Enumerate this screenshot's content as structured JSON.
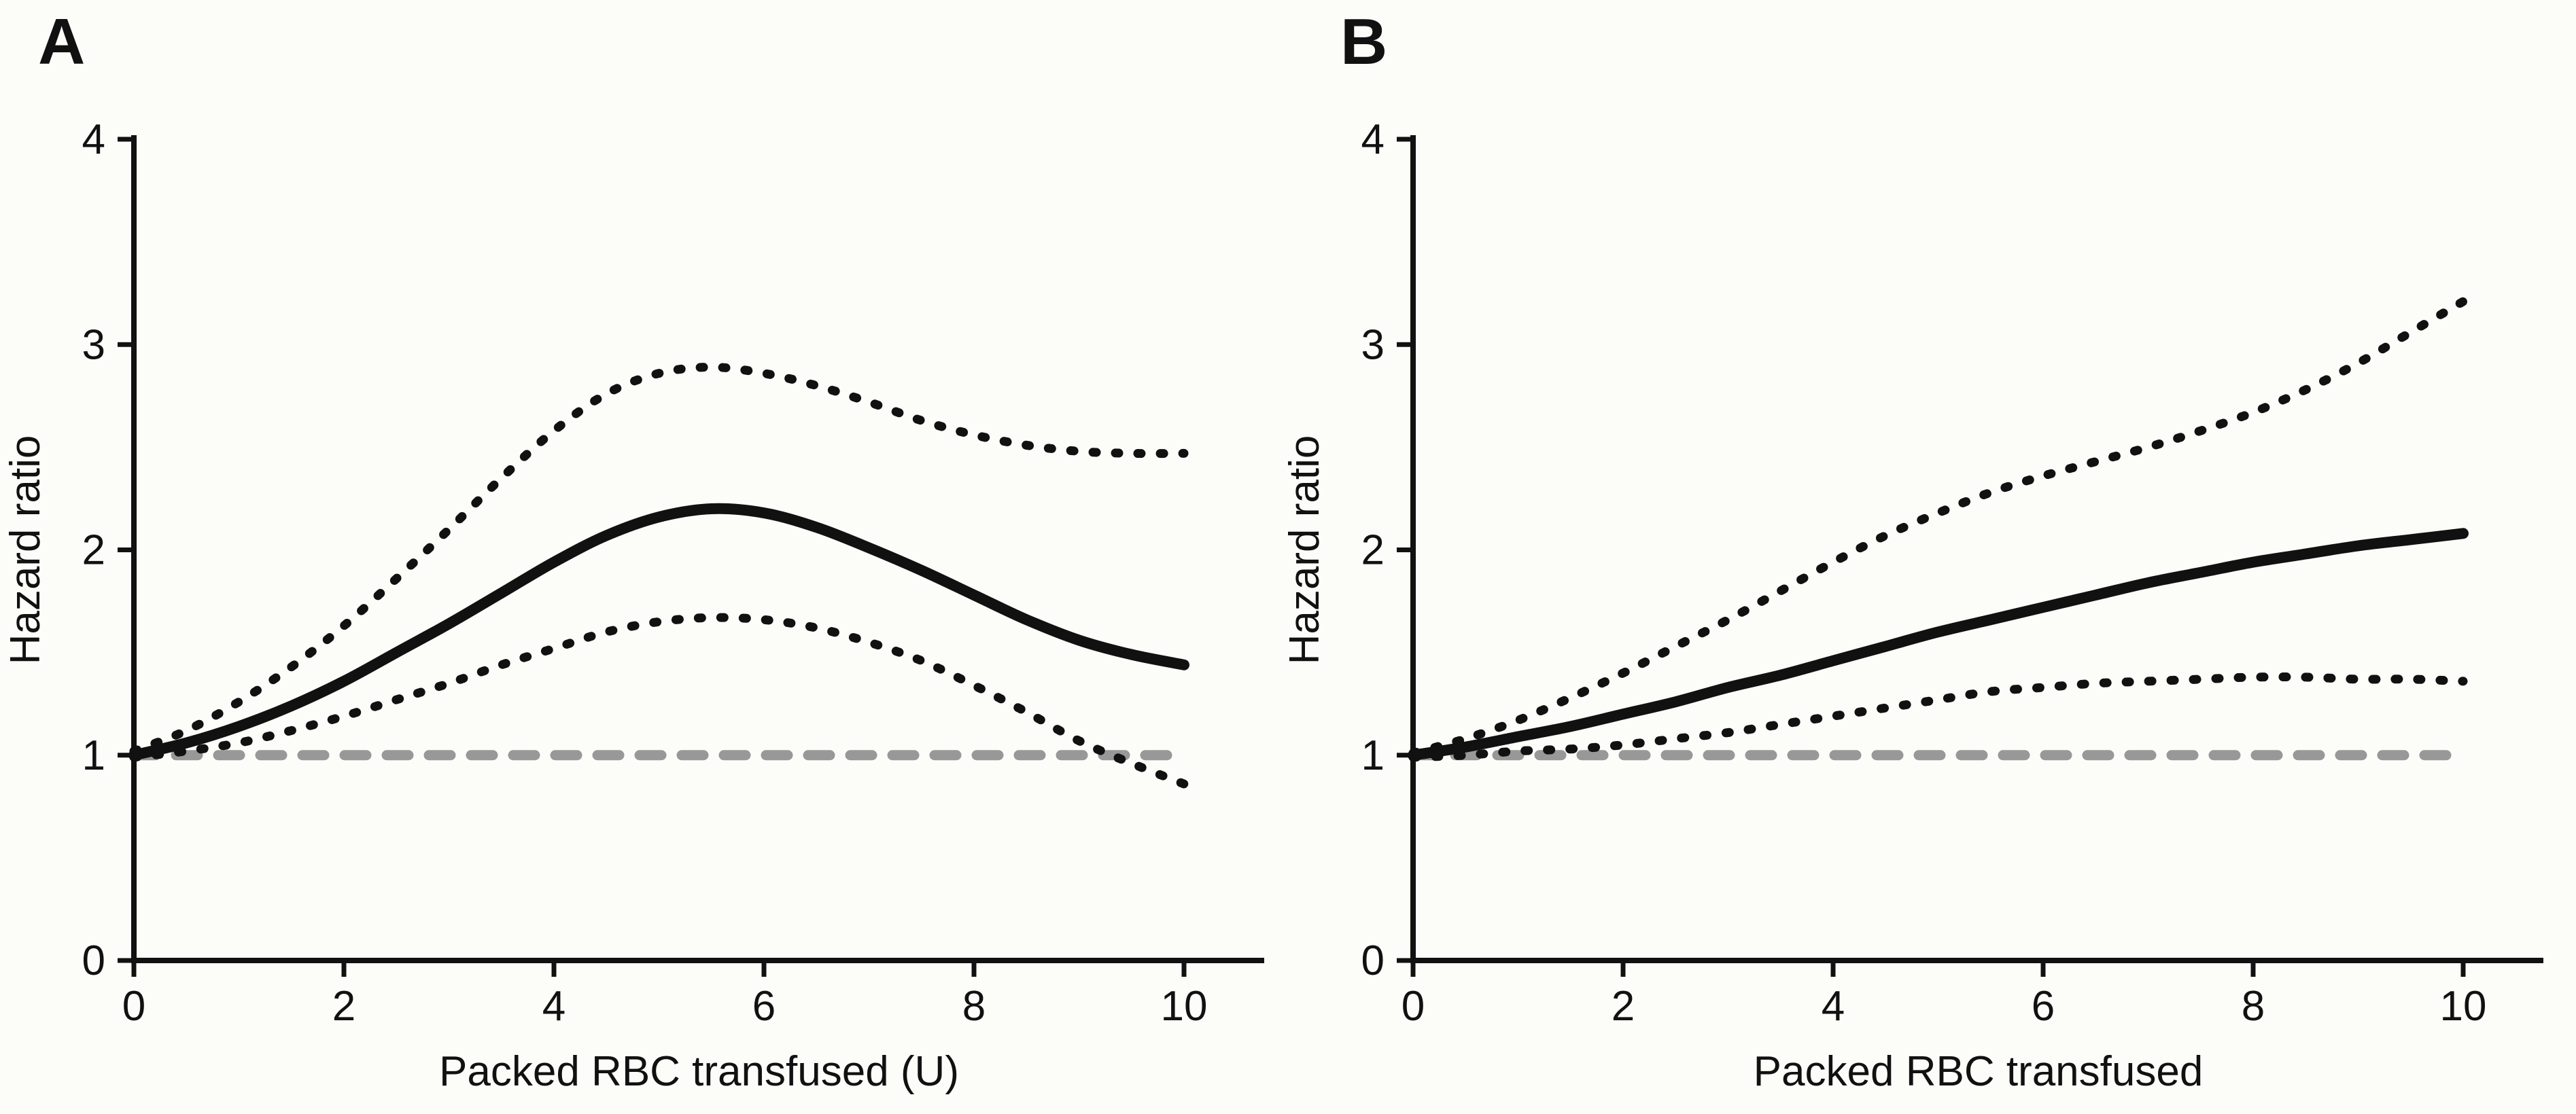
{
  "figure": {
    "background": "#fcfcf9",
    "curve_color": "#111111",
    "reference_color": "#989898"
  },
  "chart_data": [
    {
      "panel": "A",
      "type": "line",
      "xlabel": "Packed RBC transfused (U)",
      "ylabel": "Hazard ratio",
      "xlim": [
        0,
        10.8
      ],
      "ylim": [
        0,
        4
      ],
      "xticks": [
        0,
        2,
        4,
        6,
        8,
        10
      ],
      "yticks": [
        0,
        1,
        2,
        3,
        4
      ],
      "grid": false,
      "legend": "none",
      "reference_line": {
        "y": 1,
        "style": "dashed",
        "color": "#989898"
      },
      "x": [
        0,
        0.5,
        1,
        1.5,
        2,
        2.5,
        3,
        3.5,
        4,
        4.5,
        5,
        5.5,
        6,
        6.5,
        7,
        7.5,
        8,
        8.5,
        9,
        9.5,
        10
      ],
      "series": [
        {
          "name": "hazard ratio estimate",
          "style": "solid",
          "values": [
            1.0,
            1.06,
            1.14,
            1.24,
            1.36,
            1.5,
            1.64,
            1.79,
            1.94,
            2.07,
            2.16,
            2.2,
            2.18,
            2.11,
            2.01,
            1.9,
            1.78,
            1.66,
            1.56,
            1.49,
            1.44
          ]
        },
        {
          "name": "upper 95% CI",
          "style": "dotted",
          "values": [
            1.02,
            1.12,
            1.26,
            1.43,
            1.63,
            1.86,
            2.1,
            2.35,
            2.58,
            2.76,
            2.86,
            2.89,
            2.86,
            2.8,
            2.72,
            2.63,
            2.56,
            2.51,
            2.48,
            2.47,
            2.47
          ]
        },
        {
          "name": "lower 95% CI",
          "style": "dotted",
          "values": [
            0.99,
            1.02,
            1.06,
            1.12,
            1.19,
            1.27,
            1.35,
            1.44,
            1.52,
            1.6,
            1.65,
            1.67,
            1.66,
            1.62,
            1.55,
            1.46,
            1.34,
            1.21,
            1.07,
            0.96,
            0.86
          ]
        }
      ]
    },
    {
      "panel": "B",
      "type": "line",
      "xlabel": "Packed RBC transfused",
      "ylabel": "Hazard ratio",
      "xlim": [
        0,
        10.8
      ],
      "ylim": [
        0,
        4
      ],
      "xticks": [
        0,
        2,
        4,
        6,
        8,
        10
      ],
      "yticks": [
        0,
        1,
        2,
        3,
        4
      ],
      "grid": false,
      "legend": "none",
      "reference_line": {
        "y": 1,
        "style": "dashed",
        "color": "#989898"
      },
      "x": [
        0,
        0.5,
        1,
        1.5,
        2,
        2.5,
        3,
        3.5,
        4,
        4.5,
        5,
        5.5,
        6,
        6.5,
        7,
        7.5,
        8,
        8.5,
        9,
        9.5,
        10
      ],
      "series": [
        {
          "name": "hazard ratio estimate",
          "style": "solid",
          "values": [
            1.0,
            1.04,
            1.09,
            1.14,
            1.2,
            1.26,
            1.33,
            1.39,
            1.46,
            1.53,
            1.6,
            1.66,
            1.72,
            1.78,
            1.84,
            1.89,
            1.94,
            1.98,
            2.02,
            2.05,
            2.08
          ]
        },
        {
          "name": "upper 95% CI",
          "style": "dotted",
          "values": [
            1.01,
            1.08,
            1.17,
            1.28,
            1.4,
            1.53,
            1.66,
            1.8,
            1.94,
            2.07,
            2.18,
            2.28,
            2.36,
            2.43,
            2.5,
            2.58,
            2.67,
            2.78,
            2.91,
            3.06,
            3.21
          ]
        },
        {
          "name": "lower 95% CI",
          "style": "dotted",
          "values": [
            0.99,
            1.0,
            1.02,
            1.03,
            1.05,
            1.08,
            1.11,
            1.15,
            1.19,
            1.23,
            1.27,
            1.31,
            1.33,
            1.35,
            1.36,
            1.37,
            1.38,
            1.38,
            1.37,
            1.37,
            1.36
          ]
        }
      ]
    }
  ]
}
